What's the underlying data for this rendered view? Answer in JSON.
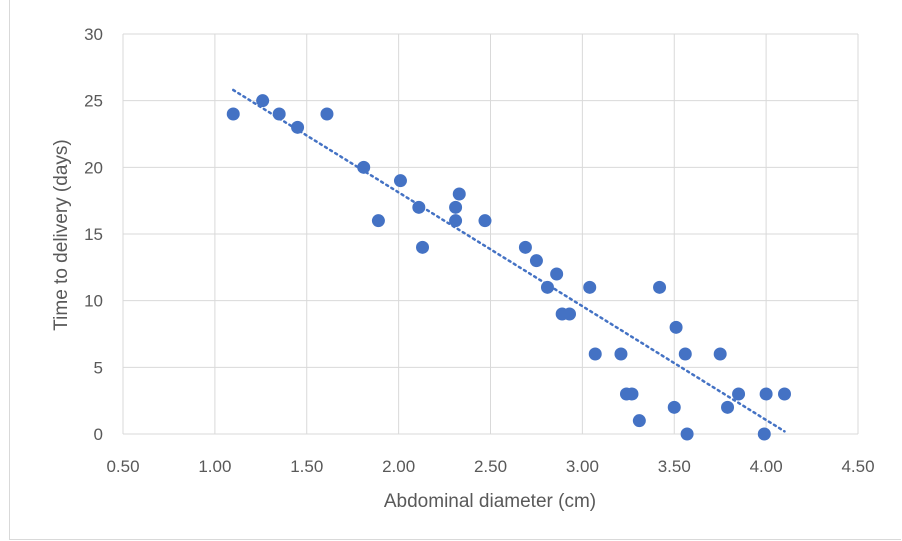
{
  "chart_data": {
    "type": "scatter",
    "title": "",
    "xlabel": "Abdominal diameter (cm)",
    "ylabel": "Time to delivery (days)",
    "xlim": [
      0.5,
      4.5
    ],
    "ylim": [
      0,
      30
    ],
    "x_ticks": [
      "0.50",
      "1.00",
      "1.50",
      "2.00",
      "2.50",
      "3.00",
      "3.50",
      "4.00",
      "4.50"
    ],
    "y_ticks": [
      "0",
      "5",
      "10",
      "15",
      "20",
      "25",
      "30"
    ],
    "grid": true,
    "legend": "none",
    "marker_color": "#4472c4",
    "points": [
      [
        1.1,
        24
      ],
      [
        1.26,
        25
      ],
      [
        1.35,
        24
      ],
      [
        1.45,
        23
      ],
      [
        1.61,
        24
      ],
      [
        1.81,
        20
      ],
      [
        1.89,
        16
      ],
      [
        2.01,
        19
      ],
      [
        2.11,
        17
      ],
      [
        2.13,
        14
      ],
      [
        2.31,
        16
      ],
      [
        2.31,
        17
      ],
      [
        2.33,
        18
      ],
      [
        2.47,
        16
      ],
      [
        2.69,
        14
      ],
      [
        2.75,
        13
      ],
      [
        2.81,
        11
      ],
      [
        2.86,
        12
      ],
      [
        2.89,
        9
      ],
      [
        2.93,
        9
      ],
      [
        3.04,
        11
      ],
      [
        3.07,
        6
      ],
      [
        3.21,
        6
      ],
      [
        3.24,
        3
      ],
      [
        3.27,
        3
      ],
      [
        3.31,
        1
      ],
      [
        3.42,
        11
      ],
      [
        3.5,
        2
      ],
      [
        3.51,
        8
      ],
      [
        3.56,
        6
      ],
      [
        3.57,
        0
      ],
      [
        3.75,
        6
      ],
      [
        3.79,
        2
      ],
      [
        3.85,
        3
      ],
      [
        3.99,
        0
      ],
      [
        4.0,
        3
      ],
      [
        4.1,
        3
      ]
    ],
    "trendline": {
      "type": "linear",
      "style": "dotted",
      "x": [
        1.1,
        4.1
      ],
      "y": [
        25.8,
        0.2
      ]
    }
  }
}
